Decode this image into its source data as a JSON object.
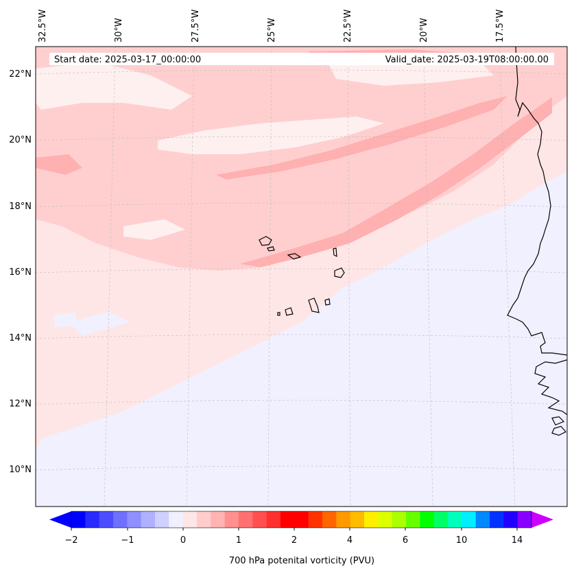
{
  "header": {
    "start_date": "Start date: 2025-03-17_00:00:00",
    "valid_date": "Valid_date: 2025-03-19T08:00:00.00"
  },
  "lon_labels": [
    "32.5°W",
    "30°W",
    "27.5°W",
    "25°W",
    "22.5°W",
    "20°W",
    "17.5°W"
  ],
  "lat_labels": [
    "22°N",
    "20°N",
    "18°N",
    "16°N",
    "14°N",
    "12°N",
    "10°N"
  ],
  "colorbar": {
    "title": "700 hPa potenital vorticity (PVU)",
    "ticks": [
      "−2",
      "−1",
      "0",
      "1",
      "2",
      "4",
      "6",
      "10",
      "14"
    ],
    "colors": [
      "#0000ff",
      "#2a2aff",
      "#4d4dff",
      "#7070ff",
      "#8f8fff",
      "#b0b0ff",
      "#d0d0ff",
      "#f0f0ff",
      "#ffe6e6",
      "#ffcccc",
      "#ffb3b3",
      "#ff9090",
      "#ff7070",
      "#ff5050",
      "#ff3030",
      "#ff0000",
      "#ff0000",
      "#ff3300",
      "#ff6600",
      "#ff9900",
      "#ffbb00",
      "#ffee00",
      "#ddff00",
      "#aaff00",
      "#66ff00",
      "#00ff00",
      "#00ff66",
      "#00ffbb",
      "#00eeff",
      "#0088ff",
      "#0033ff",
      "#2200ff",
      "#8800ff"
    ],
    "extend_low": "#0000ff",
    "extend_high": "#cc00ff"
  },
  "colors": {
    "background_field": "#ffe6e6",
    "band_light": "#ffcfcf",
    "band_mid": "#ffb0b0",
    "blue_field": "#f0f0ff",
    "white_patches": "#fff0f0"
  }
}
